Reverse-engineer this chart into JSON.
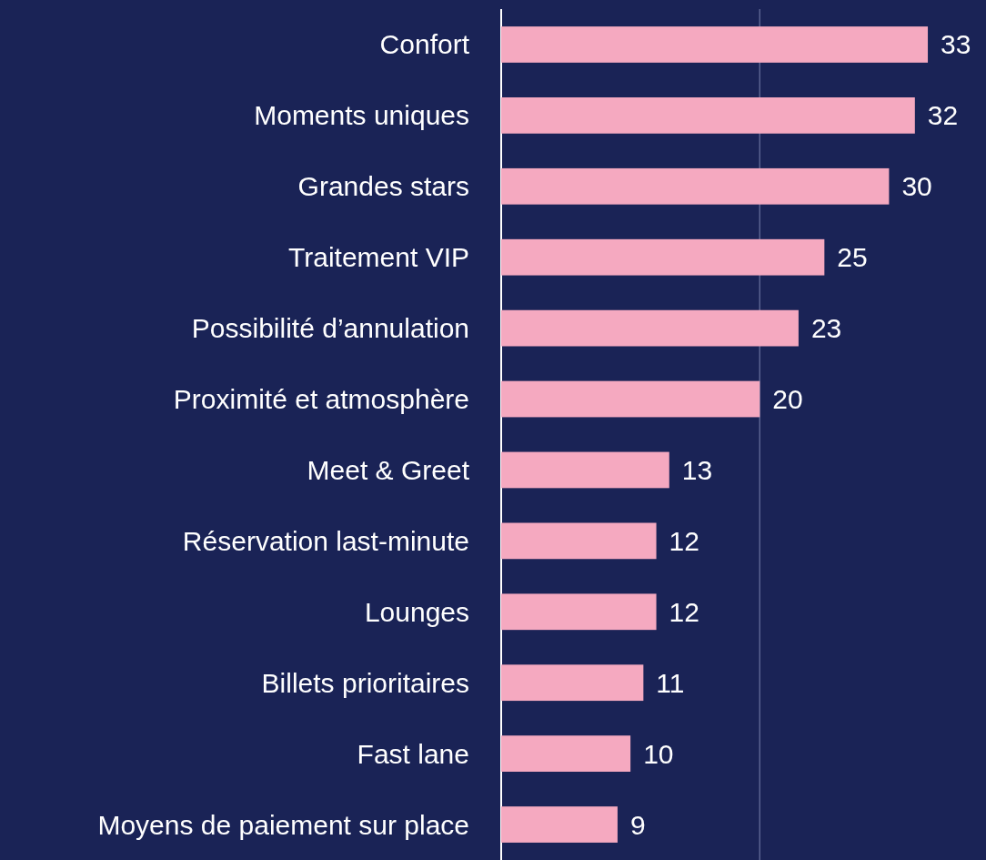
{
  "chart_data": {
    "type": "bar",
    "orientation": "horizontal",
    "categories": [
      "Confort",
      "Moments uniques",
      "Grandes stars",
      "Traitement VIP",
      "Possibilité d’annulation",
      "Proximité et atmosphère",
      "Meet & Greet",
      "Réservation last-minute",
      "Lounges",
      "Billets prioritaires",
      "Fast lane",
      "Moyens de paiement sur place"
    ],
    "values": [
      33,
      32,
      30,
      25,
      23,
      20,
      13,
      12,
      12,
      11,
      10,
      9
    ],
    "color": "#f5a9c0",
    "xlim": [
      0,
      37.5
    ],
    "ref_lines": [
      {
        "axis": "x",
        "value": 20,
        "color": "#5a6390"
      }
    ],
    "data_labels": true
  }
}
